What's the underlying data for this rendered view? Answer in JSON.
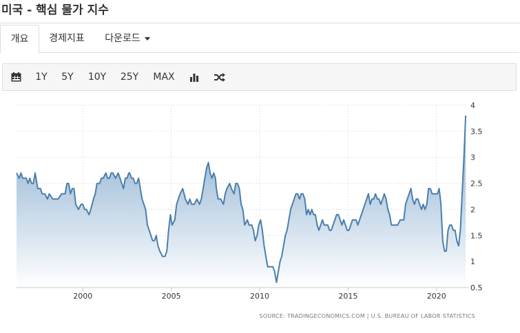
{
  "page": {
    "title": "미국 - 핵심 물가 지수"
  },
  "tabs": [
    {
      "label": "개요",
      "active": true
    },
    {
      "label": "경제지표",
      "active": false
    },
    {
      "label": "다운로드",
      "active": false,
      "dropdown": true
    }
  ],
  "toolbar": {
    "calendar_icon": "calendar-icon",
    "ranges": [
      "1Y",
      "5Y",
      "10Y",
      "25Y",
      "MAX"
    ],
    "chart_type_icon": "bar-chart-icon",
    "compare_icon": "shuffle-icon"
  },
  "chart_data": {
    "type": "area",
    "title": "",
    "xlabel": "",
    "ylabel": "",
    "x_ticks": [
      "2000",
      "2005",
      "2010",
      "2015",
      "2020"
    ],
    "y_ticks": [
      "0.5",
      "1",
      "1.5",
      "2",
      "2.5",
      "3",
      "3.5",
      "4"
    ],
    "xlim": [
      1996.25,
      2021.8
    ],
    "ylim": [
      0.5,
      4
    ],
    "grid": true,
    "colors": {
      "line": "#4a7ead",
      "fill_top": "#7ea6cb",
      "fill_bottom": "#ffffff",
      "grid": "#cccccc"
    },
    "series": [
      {
        "values": [
          [
            1996.25,
            2.7
          ],
          [
            1996.4,
            2.6
          ],
          [
            1996.5,
            2.7
          ],
          [
            1996.6,
            2.6
          ],
          [
            1996.8,
            2.6
          ],
          [
            1996.9,
            2.5
          ],
          [
            1997.0,
            2.6
          ],
          [
            1997.1,
            2.5
          ],
          [
            1997.2,
            2.5
          ],
          [
            1997.3,
            2.7
          ],
          [
            1997.45,
            2.4
          ],
          [
            1997.6,
            2.4
          ],
          [
            1997.7,
            2.3
          ],
          [
            1997.85,
            2.3
          ],
          [
            1998.0,
            2.2
          ],
          [
            1998.1,
            2.3
          ],
          [
            1998.3,
            2.2
          ],
          [
            1998.5,
            2.2
          ],
          [
            1998.6,
            2.2
          ],
          [
            1998.8,
            2.3
          ],
          [
            1998.9,
            2.3
          ],
          [
            1999.0,
            2.3
          ],
          [
            1999.1,
            2.5
          ],
          [
            1999.2,
            2.5
          ],
          [
            1999.3,
            2.3
          ],
          [
            1999.4,
            2.4
          ],
          [
            1999.5,
            2.4
          ],
          [
            1999.6,
            2.1
          ],
          [
            1999.75,
            2.0
          ],
          [
            1999.9,
            2.1
          ],
          [
            2000.0,
            2.1
          ],
          [
            2000.1,
            2.0
          ],
          [
            2000.2,
            2.0
          ],
          [
            2000.35,
            1.9
          ],
          [
            2000.45,
            2.0
          ],
          [
            2000.6,
            2.2
          ],
          [
            2000.7,
            2.3
          ],
          [
            2000.8,
            2.5
          ],
          [
            2000.95,
            2.5
          ],
          [
            2001.05,
            2.6
          ],
          [
            2001.15,
            2.6
          ],
          [
            2001.3,
            2.7
          ],
          [
            2001.4,
            2.6
          ],
          [
            2001.5,
            2.6
          ],
          [
            2001.6,
            2.7
          ],
          [
            2001.7,
            2.7
          ],
          [
            2001.85,
            2.6
          ],
          [
            2002.0,
            2.7
          ],
          [
            2002.1,
            2.6
          ],
          [
            2002.2,
            2.5
          ],
          [
            2002.3,
            2.4
          ],
          [
            2002.4,
            2.6
          ],
          [
            2002.5,
            2.6
          ],
          [
            2002.6,
            2.7
          ],
          [
            2002.65,
            2.7
          ],
          [
            2002.75,
            2.6
          ],
          [
            2002.85,
            2.6
          ],
          [
            2002.95,
            2.5
          ],
          [
            2003.05,
            2.5
          ],
          [
            2003.15,
            2.6
          ],
          [
            2003.25,
            2.4
          ],
          [
            2003.35,
            2.2
          ],
          [
            2003.45,
            2.1
          ],
          [
            2003.55,
            2.0
          ],
          [
            2003.65,
            1.7
          ],
          [
            2003.75,
            1.6
          ],
          [
            2003.85,
            1.5
          ],
          [
            2003.95,
            1.4
          ],
          [
            2004.05,
            1.4
          ],
          [
            2004.15,
            1.5
          ],
          [
            2004.25,
            1.3
          ],
          [
            2004.35,
            1.2
          ],
          [
            2004.5,
            1.1
          ],
          [
            2004.65,
            1.1
          ],
          [
            2004.75,
            1.2
          ],
          [
            2004.85,
            1.6
          ],
          [
            2004.95,
            1.9
          ],
          [
            2005.05,
            1.7
          ],
          [
            2005.2,
            1.8
          ],
          [
            2005.3,
            2.1
          ],
          [
            2005.4,
            2.2
          ],
          [
            2005.5,
            2.3
          ],
          [
            2005.65,
            2.4
          ],
          [
            2005.8,
            2.2
          ],
          [
            2005.95,
            2.1
          ],
          [
            2006.05,
            2.2
          ],
          [
            2006.15,
            2.1
          ],
          [
            2006.3,
            2.1
          ],
          [
            2006.45,
            2.2
          ],
          [
            2006.6,
            2.1
          ],
          [
            2006.7,
            2.2
          ],
          [
            2006.8,
            2.4
          ],
          [
            2006.9,
            2.6
          ],
          [
            2007.0,
            2.8
          ],
          [
            2007.1,
            2.9
          ],
          [
            2007.2,
            2.7
          ],
          [
            2007.3,
            2.6
          ],
          [
            2007.4,
            2.7
          ],
          [
            2007.5,
            2.6
          ],
          [
            2007.55,
            2.4
          ],
          [
            2007.65,
            2.2
          ],
          [
            2007.8,
            2.2
          ],
          [
            2007.95,
            2.1
          ],
          [
            2008.05,
            2.3
          ],
          [
            2008.15,
            2.4
          ],
          [
            2008.3,
            2.5
          ],
          [
            2008.4,
            2.4
          ],
          [
            2008.55,
            2.3
          ],
          [
            2008.65,
            2.5
          ],
          [
            2008.75,
            2.5
          ],
          [
            2008.85,
            2.4
          ],
          [
            2008.95,
            2.1
          ],
          [
            2009.05,
            2.0
          ],
          [
            2009.15,
            1.7
          ],
          [
            2009.3,
            1.8
          ],
          [
            2009.4,
            1.7
          ],
          [
            2009.55,
            1.7
          ],
          [
            2009.65,
            1.6
          ],
          [
            2009.75,
            1.4
          ],
          [
            2009.85,
            1.5
          ],
          [
            2009.95,
            1.7
          ],
          [
            2010.05,
            1.8
          ],
          [
            2010.15,
            1.6
          ],
          [
            2010.25,
            1.3
          ],
          [
            2010.35,
            1.1
          ],
          [
            2010.45,
            0.9
          ],
          [
            2010.6,
            0.9
          ],
          [
            2010.75,
            0.9
          ],
          [
            2010.85,
            0.8
          ],
          [
            2010.95,
            0.6
          ],
          [
            2011.05,
            0.8
          ],
          [
            2011.15,
            1.0
          ],
          [
            2011.25,
            1.1
          ],
          [
            2011.35,
            1.3
          ],
          [
            2011.45,
            1.5
          ],
          [
            2011.55,
            1.6
          ],
          [
            2011.65,
            1.8
          ],
          [
            2011.75,
            2.0
          ],
          [
            2011.85,
            2.1
          ],
          [
            2011.95,
            2.2
          ],
          [
            2012.05,
            2.3
          ],
          [
            2012.15,
            2.3
          ],
          [
            2012.25,
            2.2
          ],
          [
            2012.35,
            2.3
          ],
          [
            2012.45,
            2.3
          ],
          [
            2012.55,
            2.2
          ],
          [
            2012.65,
            1.9
          ],
          [
            2012.75,
            2.0
          ],
          [
            2012.85,
            1.9
          ],
          [
            2012.95,
            2.0
          ],
          [
            2013.05,
            1.9
          ],
          [
            2013.15,
            1.9
          ],
          [
            2013.25,
            1.7
          ],
          [
            2013.35,
            1.6
          ],
          [
            2013.45,
            1.7
          ],
          [
            2013.55,
            1.8
          ],
          [
            2013.65,
            1.7
          ],
          [
            2013.75,
            1.7
          ],
          [
            2013.85,
            1.7
          ],
          [
            2013.95,
            1.6
          ],
          [
            2014.05,
            1.6
          ],
          [
            2014.15,
            1.7
          ],
          [
            2014.25,
            1.8
          ],
          [
            2014.35,
            1.9
          ],
          [
            2014.45,
            1.9
          ],
          [
            2014.55,
            1.8
          ],
          [
            2014.65,
            1.7
          ],
          [
            2014.75,
            1.8
          ],
          [
            2014.85,
            1.7
          ],
          [
            2014.95,
            1.6
          ],
          [
            2015.05,
            1.6
          ],
          [
            2015.15,
            1.7
          ],
          [
            2015.25,
            1.8
          ],
          [
            2015.35,
            1.8
          ],
          [
            2015.45,
            1.8
          ],
          [
            2015.55,
            1.7
          ],
          [
            2015.65,
            1.8
          ],
          [
            2015.75,
            1.9
          ],
          [
            2015.85,
            2.0
          ],
          [
            2015.95,
            2.1
          ],
          [
            2016.05,
            2.2
          ],
          [
            2016.15,
            2.3
          ],
          [
            2016.25,
            2.1
          ],
          [
            2016.35,
            2.2
          ],
          [
            2016.45,
            2.2
          ],
          [
            2016.55,
            2.3
          ],
          [
            2016.65,
            2.2
          ],
          [
            2016.75,
            2.2
          ],
          [
            2016.85,
            2.1
          ],
          [
            2016.95,
            2.2
          ],
          [
            2017.05,
            2.3
          ],
          [
            2017.15,
            2.2
          ],
          [
            2017.25,
            2.0
          ],
          [
            2017.35,
            1.9
          ],
          [
            2017.45,
            1.7
          ],
          [
            2017.55,
            1.7
          ],
          [
            2017.65,
            1.7
          ],
          [
            2017.8,
            1.7
          ],
          [
            2017.95,
            1.8
          ],
          [
            2018.05,
            1.8
          ],
          [
            2018.15,
            1.8
          ],
          [
            2018.25,
            2.1
          ],
          [
            2018.35,
            2.2
          ],
          [
            2018.45,
            2.3
          ],
          [
            2018.55,
            2.4
          ],
          [
            2018.65,
            2.2
          ],
          [
            2018.75,
            2.1
          ],
          [
            2018.85,
            2.2
          ],
          [
            2018.95,
            2.2
          ],
          [
            2019.05,
            2.1
          ],
          [
            2019.15,
            2.0
          ],
          [
            2019.25,
            2.1
          ],
          [
            2019.35,
            2.0
          ],
          [
            2019.45,
            2.1
          ],
          [
            2019.55,
            2.4
          ],
          [
            2019.65,
            2.4
          ],
          [
            2019.75,
            2.3
          ],
          [
            2019.9,
            2.3
          ],
          [
            2020.05,
            2.3
          ],
          [
            2020.15,
            2.4
          ],
          [
            2020.25,
            2.1
          ],
          [
            2020.35,
            1.4
          ],
          [
            2020.45,
            1.2
          ],
          [
            2020.55,
            1.2
          ],
          [
            2020.65,
            1.6
          ],
          [
            2020.75,
            1.7
          ],
          [
            2020.85,
            1.7
          ],
          [
            2020.95,
            1.6
          ],
          [
            2021.05,
            1.6
          ],
          [
            2021.15,
            1.4
          ],
          [
            2021.25,
            1.3
          ],
          [
            2021.35,
            1.6
          ],
          [
            2021.45,
            2.3
          ],
          [
            2021.55,
            3.0
          ],
          [
            2021.65,
            3.8
          ]
        ]
      }
    ],
    "source": "SOURCE: TRADINGECONOMICS.COM  |  U.S. BUREAU OF LABOR STATISTICS"
  }
}
